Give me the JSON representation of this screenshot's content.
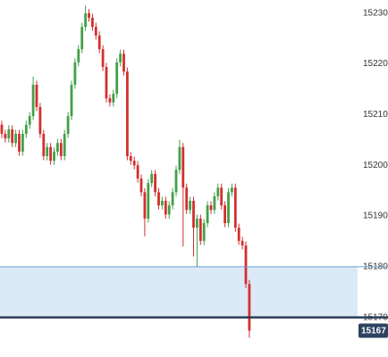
{
  "chart_data": {
    "type": "candlestick",
    "ylim": [
      15162.2,
      15232.6
    ],
    "yticks": [
      {
        "value": 15230,
        "label": "15230."
      },
      {
        "value": 15220,
        "label": "15220."
      },
      {
        "value": 15210,
        "label": "15210."
      },
      {
        "value": 15200,
        "label": "15200."
      },
      {
        "value": 15190,
        "label": "15190."
      },
      {
        "value": 15180,
        "label": "15180."
      },
      {
        "value": 15170,
        "label": "15170."
      }
    ],
    "up_color": "#43a047",
    "down_color": "#d32f2f",
    "series": {
      "open": [
        15208.0,
        15206.2,
        15205.3,
        15207.1,
        15204.4,
        15206.2,
        15202.7,
        15206.2,
        15208.0,
        15209.7,
        15215.9,
        15211.5,
        15206.2,
        15201.8,
        15203.6,
        15200.9,
        15202.7,
        15204.4,
        15201.8,
        15206.2,
        15209.7,
        15215.9,
        15220.3,
        15222.9,
        15227.3,
        15230.0,
        15229.1,
        15227.3,
        15225.6,
        15222.9,
        15219.4,
        15213.2,
        15212.4,
        15214.1,
        15220.3,
        15222.0,
        15218.5,
        15201.8,
        15200.9,
        15200.0,
        15197.4,
        15194.7,
        15189.5,
        15196.5,
        15198.3,
        15194.7,
        15192.1,
        15193.0,
        15190.3,
        15192.1,
        15194.7,
        15199.1,
        15203.6,
        15195.6,
        15191.2,
        15193.0,
        15187.7,
        15189.5,
        15185.1,
        15188.6,
        15192.1,
        15191.2,
        15193.9,
        15195.6,
        15192.1,
        15188.6,
        15194.7,
        15195.6,
        15187.7,
        15185.1,
        15184.2,
        15176.6
      ],
      "high": [
        15208.8,
        15207.0,
        15207.9,
        15207.9,
        15207.0,
        15207.0,
        15207.0,
        15208.8,
        15210.5,
        15217.5,
        15216.7,
        15212.3,
        15207.0,
        15204.4,
        15204.4,
        15203.5,
        15205.2,
        15205.2,
        15207.0,
        15210.5,
        15216.7,
        15221.1,
        15223.7,
        15228.1,
        15231.5,
        15230.8,
        15229.9,
        15228.1,
        15226.4,
        15223.7,
        15220.2,
        15214.0,
        15214.9,
        15221.1,
        15222.8,
        15222.8,
        15219.3,
        15202.6,
        15201.7,
        15200.8,
        15198.2,
        15195.5,
        15197.3,
        15199.1,
        15199.1,
        15195.5,
        15193.8,
        15193.8,
        15192.9,
        15195.5,
        15199.9,
        15205.0,
        15204.4,
        15196.4,
        15193.8,
        15193.8,
        15190.3,
        15190.3,
        15189.4,
        15192.9,
        15192.9,
        15194.7,
        15196.4,
        15196.4,
        15192.9,
        15195.5,
        15196.4,
        15196.4,
        15188.5,
        15185.9,
        15185.0,
        15177.4
      ],
      "low": [
        15205.4,
        15204.5,
        15204.5,
        15203.6,
        15203.6,
        15201.9,
        15201.9,
        15205.4,
        15207.2,
        15208.9,
        15210.7,
        15205.4,
        15201.0,
        15201.0,
        15200.1,
        15200.1,
        15201.9,
        15201.0,
        15201.0,
        15205.4,
        15208.9,
        15215.1,
        15219.5,
        15222.1,
        15226.5,
        15228.3,
        15226.5,
        15224.8,
        15222.1,
        15218.6,
        15212.4,
        15211.6,
        15211.6,
        15213.3,
        15219.5,
        15217.7,
        15201.0,
        15200.1,
        15199.2,
        15196.6,
        15193.9,
        15186.0,
        15188.7,
        15195.7,
        15193.9,
        15191.3,
        15191.3,
        15189.5,
        15189.5,
        15191.3,
        15193.9,
        15198.3,
        15184.0,
        15190.4,
        15190.4,
        15182.0,
        15180.0,
        15184.3,
        15184.3,
        15187.8,
        15190.4,
        15190.4,
        15193.1,
        15191.3,
        15187.8,
        15187.8,
        15193.9,
        15186.9,
        15184.3,
        15183.4,
        15175.8,
        15166.0
      ],
      "close": [
        15206.2,
        15205.3,
        15207.1,
        15204.4,
        15206.2,
        15202.7,
        15206.2,
        15208.0,
        15209.7,
        15215.9,
        15211.5,
        15206.2,
        15201.8,
        15203.6,
        15200.9,
        15202.7,
        15204.4,
        15201.8,
        15206.2,
        15209.7,
        15215.9,
        15220.3,
        15222.9,
        15227.3,
        15230.0,
        15229.1,
        15227.3,
        15225.6,
        15222.9,
        15219.4,
        15213.2,
        15212.4,
        15214.1,
        15220.3,
        15222.0,
        15218.5,
        15201.8,
        15200.9,
        15200.0,
        15197.4,
        15194.7,
        15189.5,
        15196.5,
        15198.3,
        15194.7,
        15192.1,
        15193.0,
        15190.3,
        15192.1,
        15194.7,
        15199.1,
        15203.6,
        15195.6,
        15191.2,
        15193.0,
        15187.7,
        15189.5,
        15185.1,
        15188.6,
        15192.1,
        15191.2,
        15193.9,
        15195.6,
        15192.1,
        15188.6,
        15194.7,
        15195.6,
        15187.7,
        15185.1,
        15184.2,
        15176.6,
        15167.4
      ]
    },
    "levels": [
      {
        "value": 15180,
        "color": "#6a9fd4"
      },
      {
        "value": 15170,
        "color": "#2c3e57"
      }
    ],
    "zone_color": "#dce9f6",
    "price_tag": {
      "value": 15167.4,
      "label": "15167",
      "color": "#2c4260"
    }
  }
}
